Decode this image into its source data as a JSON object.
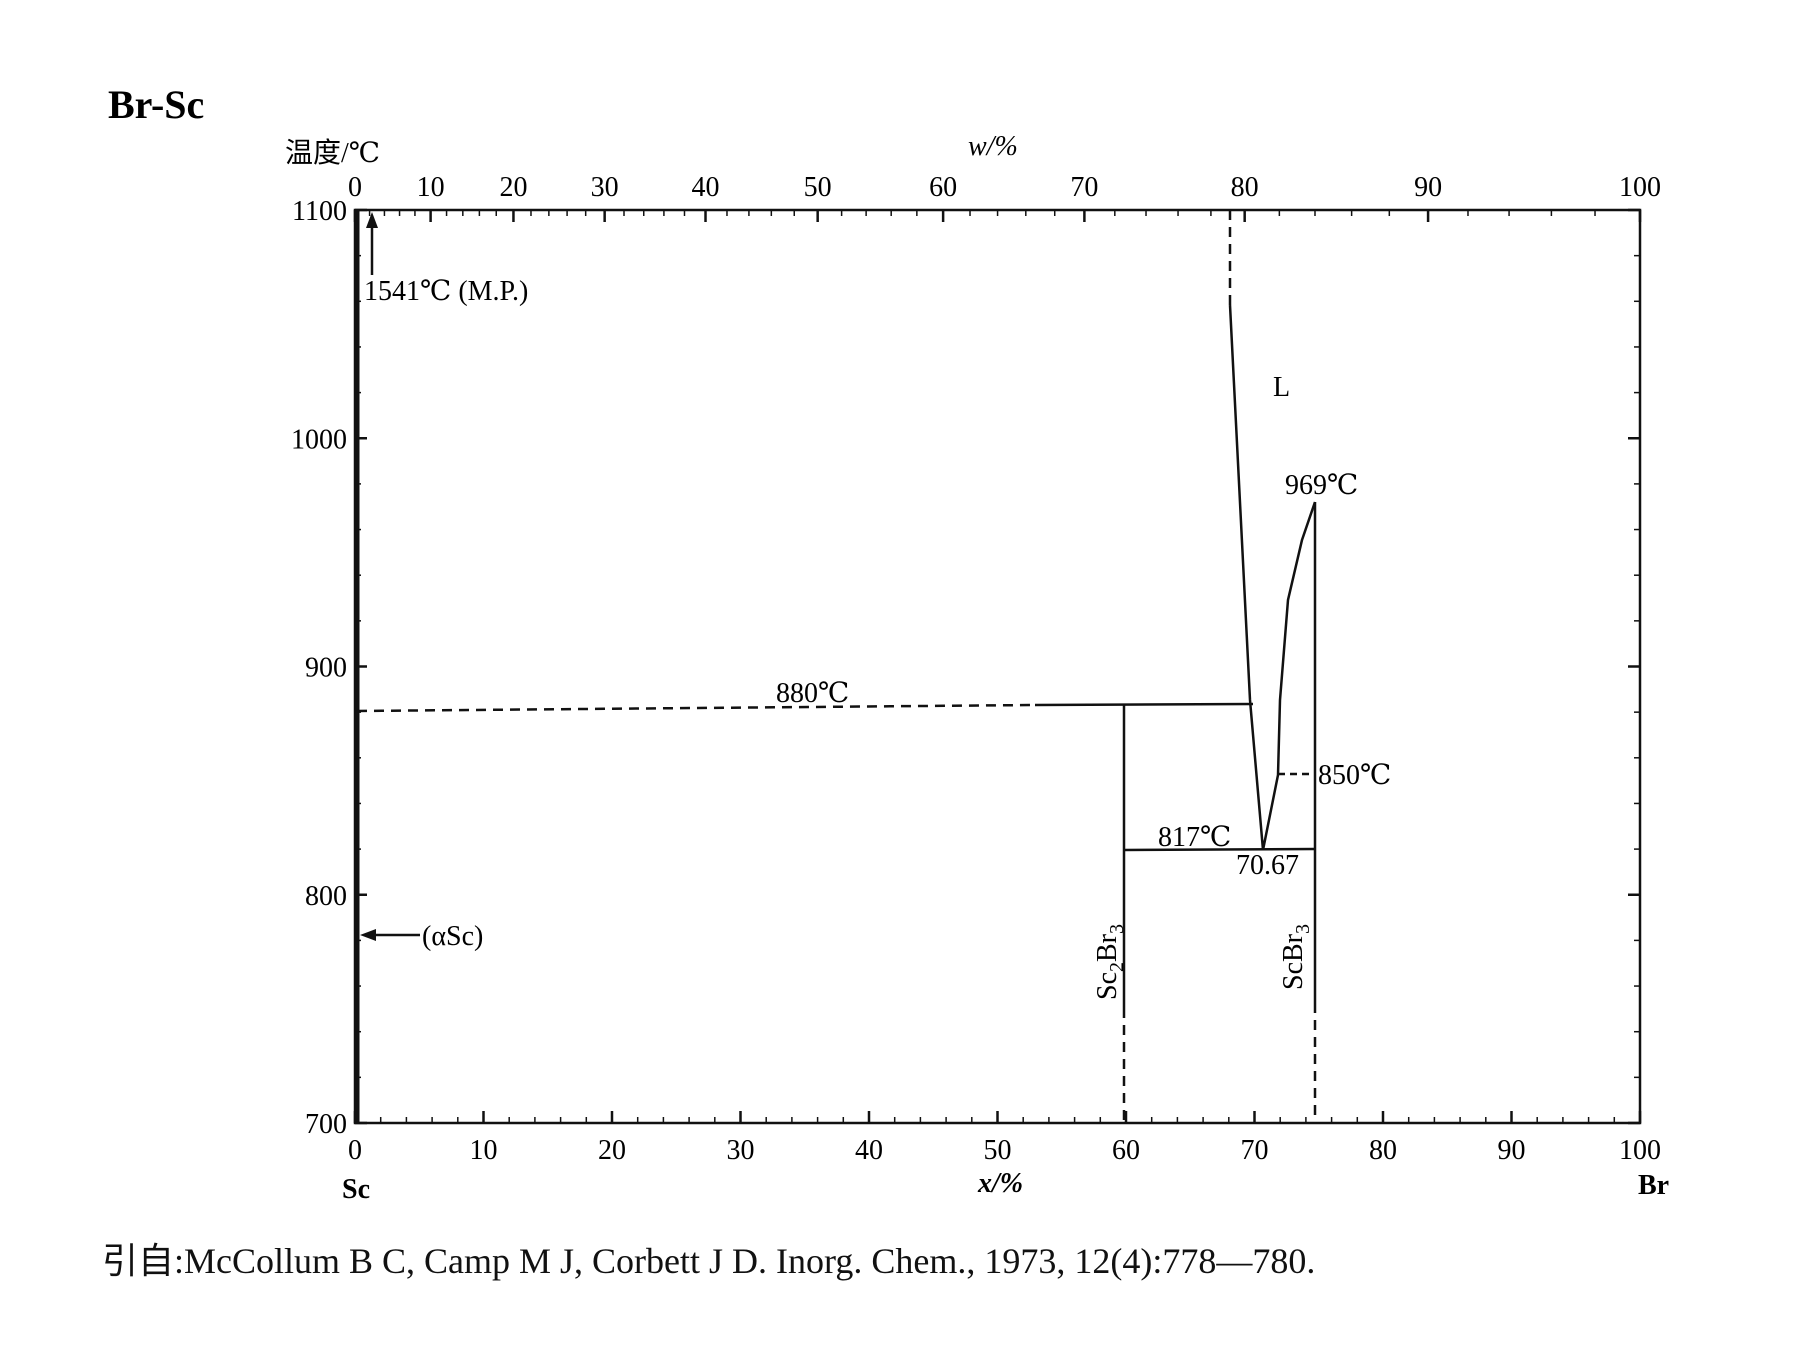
{
  "title": "Br-Sc",
  "y_axis_title": "温度/℃",
  "top_axis_title": "w/%",
  "bottom_axis_title": "x/%",
  "left_end_label": "Sc",
  "right_end_label": "Br",
  "y_ticks": [
    "700",
    "800",
    "900",
    "1000",
    "1100"
  ],
  "x_ticks": [
    "0",
    "10",
    "20",
    "30",
    "40",
    "50",
    "60",
    "70",
    "80",
    "90",
    "100"
  ],
  "w_ticks": [
    "0",
    "10",
    "20",
    "30",
    "40",
    "50",
    "60",
    "70",
    "80",
    "90",
    "100"
  ],
  "annotations": {
    "mp": "1541℃ (M.P.)",
    "liquid": "L",
    "peak": "969℃",
    "monotectic": "880℃",
    "eutectic_temp": "817℃",
    "eutectic_comp": "70.67",
    "transition": "850℃",
    "alpha_sc": "(αSc)",
    "sc2br3_base": "Sc",
    "sc2br3_sub1": "2",
    "sc2br3_mid": "Br",
    "sc2br3_sub2": "3",
    "scbr3_base": "ScBr",
    "scbr3_sub": "3"
  },
  "citation": "引自:McCollum B C, Camp M J, Corbett J D. Inorg. Chem., 1973, 12(4):778—780.",
  "chart_data": {
    "type": "phase_diagram",
    "system": "Br-Sc",
    "x_axis": "x/% (Br, atomic)",
    "y_axis": "温度/℃",
    "xlim": [
      0,
      100
    ],
    "ylim": [
      700,
      1100
    ],
    "melting_point_Sc": 1541,
    "compounds": [
      {
        "name": "Sc2Br3",
        "x": 60
      },
      {
        "name": "ScBr3",
        "x": 75,
        "melting_point": 969
      }
    ],
    "invariants": [
      {
        "temperature": 880,
        "x_range": [
          0,
          70.8
        ],
        "label": "880℃"
      },
      {
        "temperature": 817,
        "x_range": [
          60,
          75
        ],
        "eutectic_x": 70.67,
        "label": "817℃"
      },
      {
        "temperature": 850,
        "x_range": [
          72,
          75
        ],
        "label": "850℃"
      }
    ],
    "liquidus_left": [
      [
        68.5,
        1055
      ],
      [
        70.8,
        880
      ],
      [
        70.67,
        817
      ]
    ],
    "liquidus_right": [
      [
        70.67,
        817
      ],
      [
        72,
        850
      ],
      [
        72.3,
        880
      ],
      [
        73.5,
        935
      ],
      [
        75,
        969
      ]
    ],
    "phase_labels": [
      {
        "text": "L",
        "x": 73,
        "t": 1020
      },
      {
        "text": "(αSc)",
        "x": 5,
        "t": 783
      }
    ]
  }
}
